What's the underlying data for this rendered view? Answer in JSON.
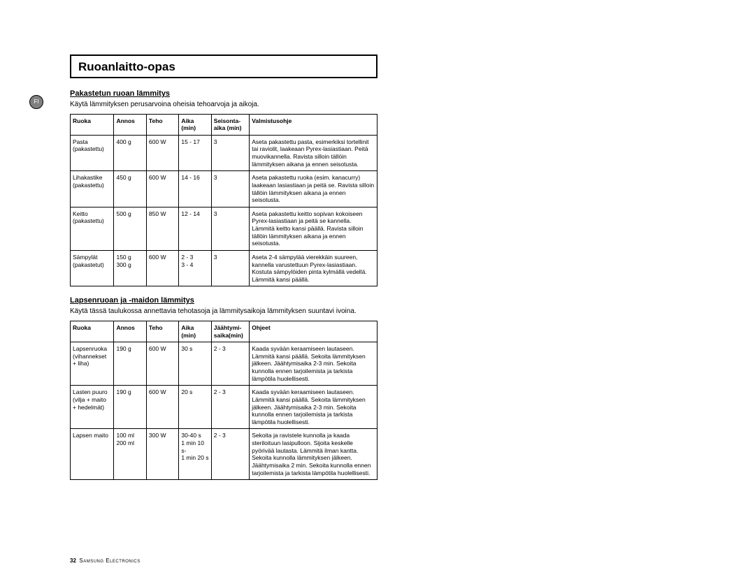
{
  "sideIndicator": "FI",
  "title": "Ruoanlaitto-opas",
  "section1": {
    "heading": "Pakastetun ruoan lämmitys",
    "desc": "Käytä lämmityksen perusarvoina oheisia tehoarvoja ja aikoja.",
    "headers": [
      "Ruoka",
      "Annos",
      "Teho",
      "Aika (min)",
      "Seisonta-aika (min)",
      "Valmistusohje"
    ],
    "rows": [
      {
        "c0": "Pasta\n(pakastettu)",
        "c1": "400 g",
        "c2": "600 W",
        "c3": "15 - 17",
        "c4": "3",
        "c5": "Aseta pakastettu pasta, esimerkiksi tortellinit tai raviolit, laakeaan Pyrex-lasiastiaan. Peitä muovikannella. Ravista silloin tällöin lämmityksen aikana ja ennen seisotusta."
      },
      {
        "c0": "Lihakastike\n(pakastettu)",
        "c1": "450 g",
        "c2": "600 W",
        "c3": "14 - 16",
        "c4": "3",
        "c5": "Aseta pakastettu ruoka (esim. kanacurry) laakeaan lasiastiaan ja peitä se. Ravista silloin tällöin lämmityksen aikana ja ennen seisotusta."
      },
      {
        "c0": "Keitto\n(pakastettu)",
        "c1": "500 g",
        "c2": "850 W",
        "c3": "12 - 14",
        "c4": "3",
        "c5": "Aseta pakastettu keitto sopivan kokoiseen Pyrex-lasiastiaan ja peitä se kannella. Lämmitä keitto kansi päällä. Ravista silloin tällöin lämmityksen aikana ja ennen seisotusta."
      },
      {
        "c0": "Sämpylät\n(pakastetut)",
        "c1": "150 g\n300 g",
        "c2": "600 W",
        "c3": "2 - 3\n3 - 4",
        "c4": "3",
        "c5": "Aseta 2-4 sämpylää vierekkäin suureen, kannella varustettuun Pyrex-lasiastiaan. Kostuta sämpylöiden pinta kylmällä vedellä. Lämmitä kansi päällä."
      }
    ]
  },
  "section2": {
    "heading": "Lapsenruoan ja -maidon lämmitys",
    "desc": "Käytä tässä taulukossa annettavia tehotasoja ja lämmitysaikoja lämmityksen suuntavi ivoina.",
    "headers": [
      "Ruoka",
      "Annos",
      "Teho",
      "Aika (min)",
      "Jäähtymi-saika(min)",
      "Ohjeet"
    ],
    "rows": [
      {
        "c0": "Lapsenruoka\n(vihannekset\n+ liha)",
        "c1": "190 g",
        "c2": "600 W",
        "c3": "30 s",
        "c4": "2 - 3",
        "c5": "Kaada syvään keraamiseen lautaseen. Lämmitä kansi päällä. Sekoita lämmityksen jälkeen. Jäähtymisaika 2-3 min. Sekoita kunnolla ennen tarjoilemista ja tarkista lämpötila huolellisesti."
      },
      {
        "c0": "Lasten puuro\n(vilja + maito\n+ hedelmät)",
        "c1": "190 g",
        "c2": "600 W",
        "c3": "20 s",
        "c4": "2 - 3",
        "c5": "Kaada syvään keraamiseen lautaseen. Lämmitä kansi päällä. Sekoita lämmityksen jälkeen. Jäähtymisaika 2-3 min. Sekoita kunnolla ennen tarjoilemista ja tarkista lämpötila huolellisesti."
      },
      {
        "c0": "Lapsen maito",
        "c1": "100 ml\n200 ml",
        "c2": "300 W",
        "c3": "30-40 s\n1 min 10 s-\n1 min 20 s",
        "c4": "2 - 3",
        "c5": "Sekoita ja ravistele kunnolla ja kaada steriloituun lasipulloon. Sijoita keskelle pyörivää lautasta. Lämmitä ilman kantta. Sekoita kunnolla lämmityksen jälkeen. Jäähtymisaika 2 min. Sekoita kunnolla ennen tarjoilemista ja tarkista lämpötila huolellisesti."
      }
    ]
  },
  "footer": {
    "pageNum": "32",
    "brand": "Samsung Electronics"
  }
}
